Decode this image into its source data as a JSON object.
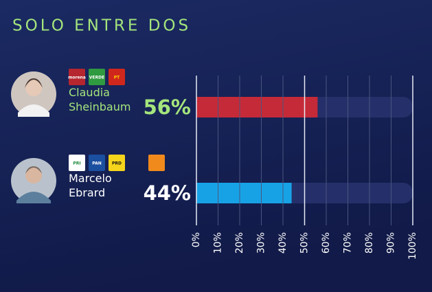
{
  "chart_data": {
    "type": "bar",
    "orientation": "horizontal",
    "title": "SOLO ENTRE DOS",
    "categories": [
      "Claudia Sheinbaum",
      "Marcelo Ebrard"
    ],
    "parties": [
      [
        "morena",
        "VERDE",
        "PT"
      ],
      [
        "PRI",
        "PAN",
        "PRD"
      ]
    ],
    "values": [
      56,
      44
    ],
    "value_labels": [
      "56%",
      "44%"
    ],
    "colors": [
      "#c52a38",
      "#17a2e6"
    ],
    "label_colors": [
      "#a4e57c",
      "#ffffff"
    ],
    "xlim": [
      0,
      100
    ],
    "xticks": [
      {
        "value": 0,
        "label": "0%"
      },
      {
        "value": 10,
        "label": "10%"
      },
      {
        "value": 20,
        "label": "20%"
      },
      {
        "value": 30,
        "label": "30%"
      },
      {
        "value": 40,
        "label": "40%"
      },
      {
        "value": 50,
        "label": "50%"
      },
      {
        "value": 60,
        "label": "60%"
      },
      {
        "value": 70,
        "label": "70%"
      },
      {
        "value": 80,
        "label": "80%"
      },
      {
        "value": 90,
        "label": "90%"
      },
      {
        "value": 100,
        "label": "100%"
      }
    ],
    "grid": true
  }
}
